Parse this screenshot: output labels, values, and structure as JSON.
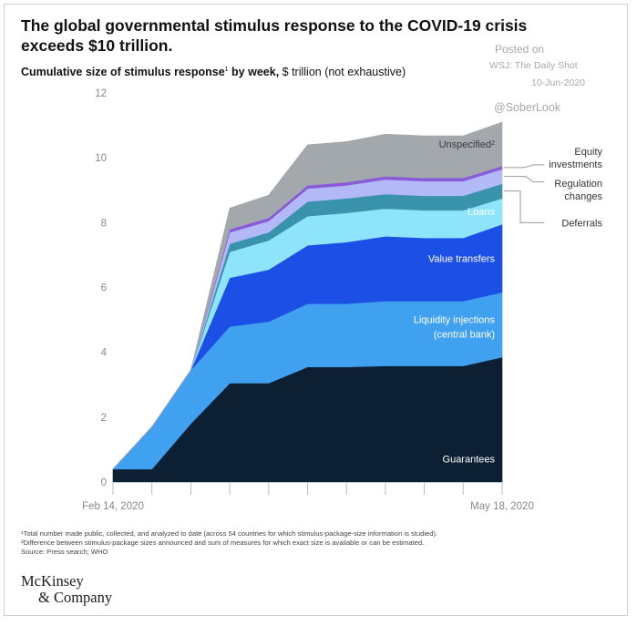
{
  "header": {
    "title": "The global governmental stimulus response to the COVID-19 crisis exceeds $10 trillion.",
    "subtitle_bold": "Cumulative size of stimulus response",
    "subtitle_sup": "1",
    "subtitle_bold_tail": " by week,",
    "subtitle_regular": " $ trillion (not exhaustive)"
  },
  "watermark": {
    "posted_on": "Posted on",
    "source": "WSJ: The Daily Shot",
    "date": "10-Jun-2020",
    "handle": "@SoberLook"
  },
  "chart_data": {
    "type": "area",
    "stacked": true,
    "title": "Cumulative size of stimulus response by week",
    "ylabel": "$ trillion (not exhaustive)",
    "x_start_label": "Feb 14, 2020",
    "x_end_label": "May 18, 2020",
    "x_weeks": [
      0,
      1,
      2,
      3,
      4,
      5,
      6,
      7,
      8,
      9,
      10
    ],
    "ylim": [
      0,
      12
    ],
    "y_ticks": [
      "0",
      "2",
      "4",
      "6",
      "8",
      "10",
      "12"
    ],
    "grid": false,
    "series": [
      {
        "name": "Guarantees",
        "color": "#0d1f33",
        "values": [
          0.4,
          0.4,
          1.8,
          3.05,
          3.05,
          3.55,
          3.55,
          3.58,
          3.58,
          3.58,
          3.85
        ]
      },
      {
        "name": "Liquidity injections (central bank)",
        "color": "#3fa1ef",
        "values": [
          0.0,
          1.3,
          1.65,
          1.75,
          1.9,
          1.95,
          1.95,
          2.0,
          2.0,
          2.0,
          2.0
        ]
      },
      {
        "name": "Value transfers",
        "color": "#1c4fe6",
        "values": [
          0.0,
          0.0,
          0.0,
          1.5,
          1.6,
          1.8,
          1.9,
          2.0,
          1.95,
          1.95,
          2.1
        ]
      },
      {
        "name": "Loans",
        "color": "#8ee4fb",
        "values": [
          0.0,
          0.0,
          0.0,
          0.8,
          0.9,
          0.9,
          0.9,
          0.85,
          0.85,
          0.85,
          0.8
        ]
      },
      {
        "name": "Deferrals",
        "color": "#3a93ad",
        "values": [
          0.0,
          0.0,
          0.0,
          0.25,
          0.25,
          0.45,
          0.45,
          0.45,
          0.45,
          0.45,
          0.45
        ]
      },
      {
        "name": "Regulation changes",
        "color": "#b3b8f7",
        "values": [
          0.0,
          0.0,
          0.0,
          0.35,
          0.35,
          0.4,
          0.4,
          0.45,
          0.45,
          0.45,
          0.45
        ]
      },
      {
        "name": "Equity investments",
        "color": "#8a5bd8",
        "values": [
          0.0,
          0.0,
          0.0,
          0.1,
          0.1,
          0.1,
          0.1,
          0.1,
          0.1,
          0.1,
          0.1
        ]
      },
      {
        "name": "Unspecified",
        "color": "#a3a8ad",
        "values": [
          0.0,
          0.0,
          0.0,
          0.65,
          0.7,
          1.25,
          1.25,
          1.3,
          1.3,
          1.3,
          1.35
        ]
      }
    ],
    "labels": {
      "guarantees": "Guarantees",
      "liquidity_line1": "Liquidity injections",
      "liquidity_line2": "(central bank)",
      "value_transfers": "Value transfers",
      "loans": "Loans",
      "unspecified": "Unspecified",
      "unspecified_sup": "2",
      "equity_line1": "Equity",
      "equity_line2": "investments",
      "regulation_line1": "Regulation",
      "regulation_line2": "changes",
      "deferrals": "Deferrals"
    },
    "colors": {
      "axis_text": "#888888",
      "tick": "#bbbbbb",
      "inside_label": "#ffffff",
      "unspecified_label": "#3a3a3a",
      "outside_label": "#333333",
      "callout_line": "#9a9a9a"
    }
  },
  "footnotes": {
    "note1": "¹Total number made public, collected, and analyzed to date (across 54 countries for which stimulus-package-size information is studied).",
    "note2": "²Difference between stimulus-package sizes announced and sum of measures for which exact size is available or can be estimated.",
    "source": "Source: Press search; WHO"
  },
  "logo": {
    "line1": "McKinsey",
    "line2": "& Company"
  }
}
